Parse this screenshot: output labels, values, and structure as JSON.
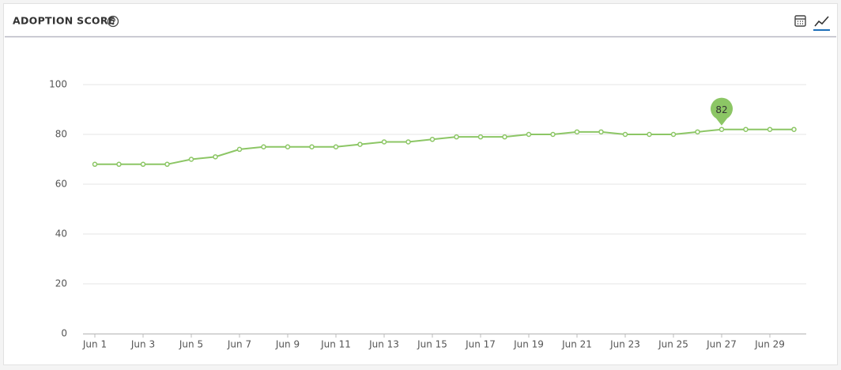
{
  "header": {
    "title": "ADOPTION SCORE"
  },
  "chart_data": {
    "type": "line",
    "categories": [
      "Jun 1",
      null,
      "Jun 3",
      null,
      "Jun 5",
      null,
      "Jun 7",
      null,
      "Jun 9",
      null,
      "Jun 11",
      null,
      "Jun 13",
      null,
      "Jun 15",
      null,
      "Jun 17",
      null,
      "Jun 19",
      null,
      "Jun 21",
      null,
      "Jun 23",
      null,
      "Jun 25",
      null,
      "Jun 27",
      null,
      "Jun 29",
      null
    ],
    "values": [
      68,
      68,
      68,
      68,
      70,
      71,
      74,
      75,
      75,
      75,
      75,
      76,
      77,
      77,
      78,
      79,
      79,
      79,
      80,
      80,
      81,
      81,
      80,
      80,
      80,
      81,
      82,
      82,
      82,
      82
    ],
    "color": "#8cc665",
    "ylim": [
      0,
      100
    ],
    "yticks": [
      0,
      20,
      40,
      60,
      80,
      100
    ],
    "grid": true,
    "marker_index": 26
  }
}
